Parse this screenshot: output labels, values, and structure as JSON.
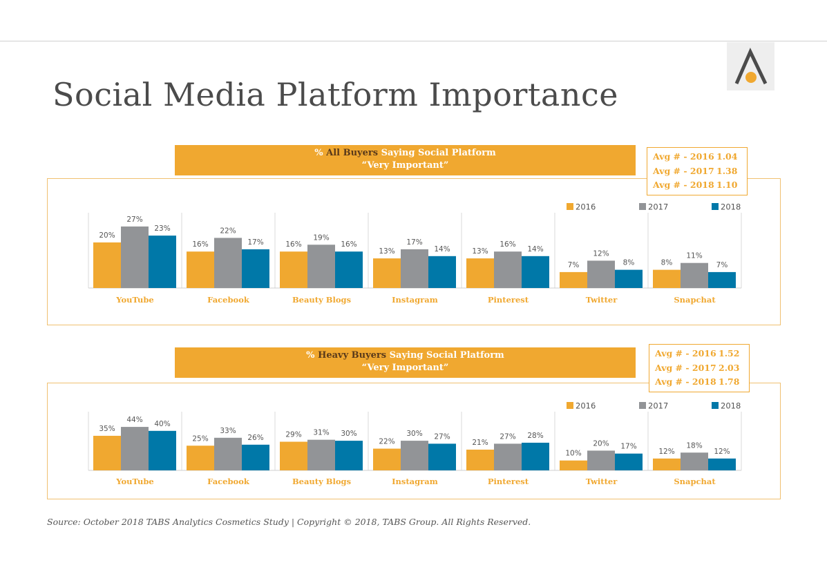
{
  "title": "Social Media Platform Importance",
  "source": "Source: October 2018 TABS Analytics Cosmetics Study | Copyright © 2018, TABS Group. All Rights Reserved.",
  "colors": {
    "2016": "#f0a830",
    "2017": "#929497",
    "2018": "#0078a8",
    "accent": "#f0a830"
  },
  "panels": [
    {
      "banner_pre": "% ",
      "banner_highlight": "All Buyers",
      "banner_post": " Saying Social Platform",
      "banner_line2": "“Very Important”",
      "averages": [
        {
          "label": "Avg # - 2016",
          "value": "1.04"
        },
        {
          "label": "Avg # - 2017",
          "value": "1.38"
        },
        {
          "label": "Avg # - 2018",
          "value": "1.10"
        }
      ]
    },
    {
      "banner_pre": "% ",
      "banner_highlight": "Heavy Buyers",
      "banner_post": " Saying Social Platform",
      "banner_line2": "“Very Important”",
      "averages": [
        {
          "label": "Avg # - 2016",
          "value": "1.52"
        },
        {
          "label": "Avg # - 2017",
          "value": "2.03"
        },
        {
          "label": "Avg # - 2018",
          "value": "1.78"
        }
      ]
    }
  ],
  "chart_data": [
    {
      "type": "bar",
      "categories": [
        "YouTube",
        "Facebook",
        "Beauty Blogs",
        "Instagram",
        "Pinterest",
        "Twitter",
        "Snapchat"
      ],
      "legend": [
        "2016",
        "2017",
        "2018"
      ],
      "legend_position": "top-right",
      "series": [
        {
          "name": "2016",
          "values": [
            20,
            16,
            16,
            13,
            13,
            7,
            8
          ]
        },
        {
          "name": "2017",
          "values": [
            27,
            22,
            19,
            17,
            16,
            12,
            11
          ]
        },
        {
          "name": "2018",
          "values": [
            23,
            17,
            16,
            14,
            14,
            8,
            7
          ]
        }
      ],
      "ylim": [
        0,
        30
      ]
    },
    {
      "type": "bar",
      "categories": [
        "YouTube",
        "Facebook",
        "Beauty Blogs",
        "Instagram",
        "Pinterest",
        "Twitter",
        "Snapchat"
      ],
      "legend": [
        "2016",
        "2017",
        "2018"
      ],
      "legend_position": "top-right",
      "series": [
        {
          "name": "2016",
          "values": [
            35,
            25,
            29,
            22,
            21,
            10,
            12
          ]
        },
        {
          "name": "2017",
          "values": [
            44,
            33,
            31,
            30,
            27,
            20,
            18
          ]
        },
        {
          "name": "2018",
          "values": [
            40,
            26,
            30,
            27,
            28,
            17,
            12
          ]
        }
      ],
      "ylim": [
        0,
        50
      ]
    }
  ]
}
